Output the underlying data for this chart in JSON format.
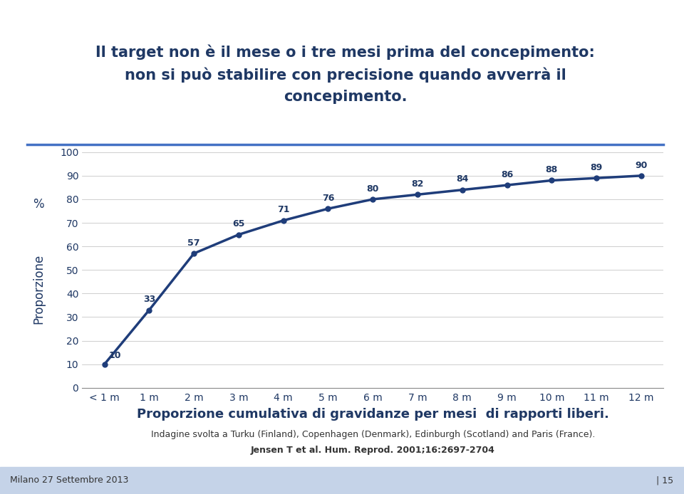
{
  "title_line1": "Il target non è il mese o i tre mesi prima del concepimento:",
  "title_line2": "non si può stabilire con precisione quando avverrà il",
  "title_line3": "concepimento.",
  "title_color": "#1F3864",
  "title_fontsize": 15,
  "xlabel_categories": [
    "< 1 m",
    "1 m",
    "2 m",
    "3 m",
    "4 m",
    "5 m",
    "6 m",
    "7 m",
    "8 m",
    "9 m",
    "10 m",
    "11 m",
    "12 m"
  ],
  "y_values": [
    10,
    33,
    57,
    65,
    71,
    76,
    80,
    82,
    84,
    86,
    88,
    89,
    90
  ],
  "line_color": "#1F3D7A",
  "line_width": 2.5,
  "marker": "o",
  "marker_size": 5,
  "marker_color": "#1F3D7A",
  "ylabel_proporzione": "Proporzione",
  "ylabel_percent": "%",
  "ylabel_fontsize": 12,
  "ylabel_color": "#1F3864",
  "ylim": [
    0,
    100
  ],
  "yticks": [
    0,
    10,
    20,
    30,
    40,
    50,
    60,
    70,
    80,
    90,
    100
  ],
  "grid_color": "#BBBBBB",
  "grid_linewidth": 0.5,
  "xlabel_fontsize": 10,
  "tick_label_color": "#1F3864",
  "ytick_label_color": "#1F3864",
  "data_label_fontsize": 9,
  "data_label_color": "#1F3864",
  "chart_title": "Proporzione cumulativa di gravidanze per mesi  di rapporti liberi.",
  "chart_title_fontsize": 13,
  "chart_title_color": "#1F3864",
  "subtitle1": "Indagine svolta a Turku (Finland), Copenhagen (Denmark), Edinburgh (Scotland) and Paris (France).",
  "subtitle2": "Jensen T et al. Hum. Reprod. 2001;16:2697-2704",
  "subtitle1_fontsize": 9,
  "subtitle2_fontsize": 9,
  "subtitle_color": "#333333",
  "footer_left": "Milano 27 Settembre 2013",
  "footer_right": "| 15",
  "footer_fontsize": 9,
  "footer_color": "#333333",
  "footer_bg_color": "#C5D3E8",
  "background_color": "#FFFFFF",
  "separator_color": "#4472C4",
  "separator_linewidth": 2.5
}
